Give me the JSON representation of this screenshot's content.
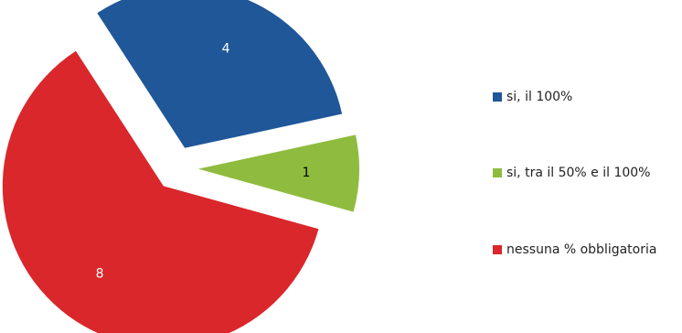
{
  "chart_data": {
    "type": "pie",
    "categories": [
      "si, il 100%",
      "si, tra il 50% e il 100%",
      "nessuna % obbligatoria"
    ],
    "values": [
      4,
      1,
      8
    ],
    "colors": [
      "#1f5799",
      "#8fbc3f",
      "#d9272b"
    ],
    "label_colors": [
      "#ffffff",
      "#000000",
      "#ffffff"
    ],
    "exploded": true,
    "legend_position": "right"
  }
}
